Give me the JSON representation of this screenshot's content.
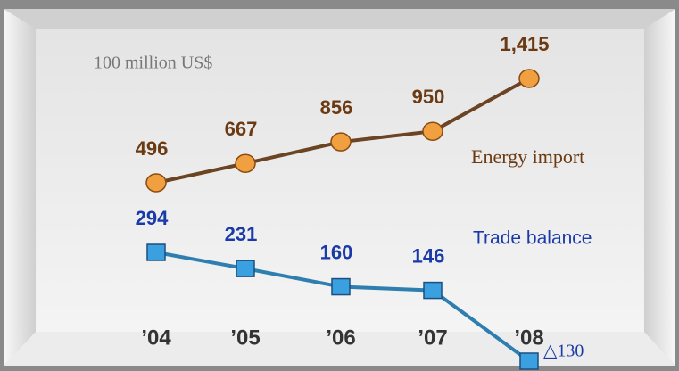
{
  "chart_data": {
    "type": "line",
    "y_label": "100 million US$",
    "categories": [
      "’04",
      "’05",
      "’06",
      "’07",
      "’08"
    ],
    "series": [
      {
        "name": "Energy import",
        "color": "#6b4423",
        "marker_color": "#f0a040",
        "marker": "circle",
        "values": [
          496,
          667,
          856,
          950,
          1415
        ],
        "value_labels": [
          "496",
          "667",
          "856",
          "950",
          "1,415"
        ]
      },
      {
        "name": "Trade balance",
        "color": "#2e7fb0",
        "marker_color": "#3aa0e0",
        "marker": "square",
        "values": [
          294,
          231,
          160,
          146,
          -130
        ],
        "value_labels": [
          "294",
          "231",
          "160",
          "146",
          "△130"
        ]
      }
    ]
  }
}
